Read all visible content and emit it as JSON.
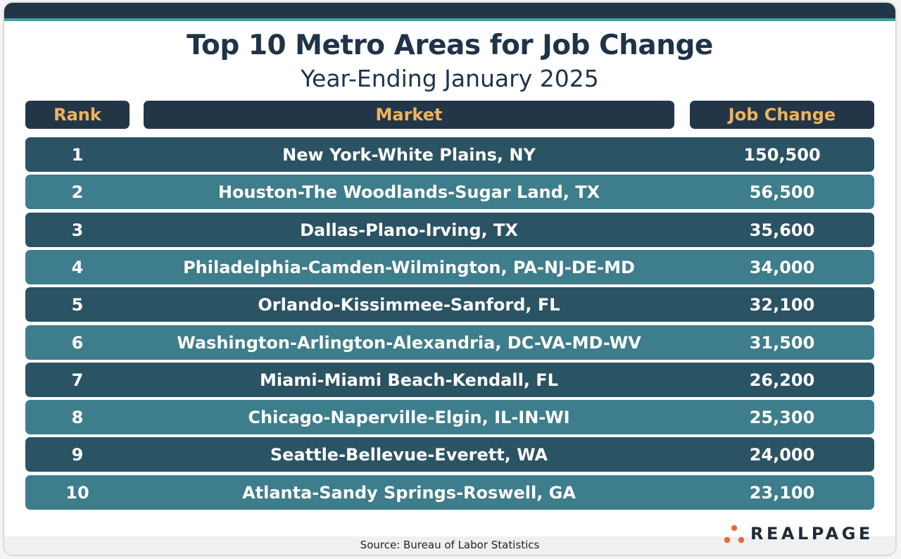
{
  "title": "Top 10 Metro Areas for Job Change",
  "subtitle": "Year-Ending January 2025",
  "source": "Source: Bureau of Labor Statistics",
  "logo_text": "REALPAGE",
  "colors": {
    "header_bg": "#233648",
    "header_text": "#f0b25c",
    "row_dark": "#2a5364",
    "row_light": "#3e7d8b",
    "accent": "#4b9f9a",
    "logo_dot": "#e8683a"
  },
  "chart_data": {
    "type": "table",
    "columns": [
      "Rank",
      "Market",
      "Job Change"
    ],
    "rows": [
      {
        "rank": "1",
        "market": "New York-White Plains, NY",
        "job_change": "150,500"
      },
      {
        "rank": "2",
        "market": "Houston-The Woodlands-Sugar Land, TX",
        "job_change": "56,500"
      },
      {
        "rank": "3",
        "market": "Dallas-Plano-Irving, TX",
        "job_change": "35,600"
      },
      {
        "rank": "4",
        "market": "Philadelphia-Camden-Wilmington, PA-NJ-DE-MD",
        "job_change": "34,000"
      },
      {
        "rank": "5",
        "market": "Orlando-Kissimmee-Sanford, FL",
        "job_change": "32,100"
      },
      {
        "rank": "6",
        "market": "Washington-Arlington-Alexandria, DC-VA-MD-WV",
        "job_change": "31,500"
      },
      {
        "rank": "7",
        "market": "Miami-Miami Beach-Kendall, FL",
        "job_change": "26,200"
      },
      {
        "rank": "8",
        "market": "Chicago-Naperville-Elgin, IL-IN-WI",
        "job_change": "25,300"
      },
      {
        "rank": "9",
        "market": "Seattle-Bellevue-Everett, WA",
        "job_change": "24,000"
      },
      {
        "rank": "10",
        "market": "Atlanta-Sandy Springs-Roswell, GA",
        "job_change": "23,100"
      }
    ]
  }
}
